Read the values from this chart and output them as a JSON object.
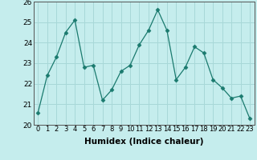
{
  "x": [
    0,
    1,
    2,
    3,
    4,
    5,
    6,
    7,
    8,
    9,
    10,
    11,
    12,
    13,
    14,
    15,
    16,
    17,
    18,
    19,
    20,
    21,
    22,
    23
  ],
  "y": [
    20.6,
    22.4,
    23.3,
    24.5,
    25.1,
    22.8,
    22.9,
    21.2,
    21.7,
    22.6,
    22.9,
    23.9,
    24.6,
    25.6,
    24.6,
    22.2,
    22.8,
    23.8,
    23.5,
    22.2,
    21.8,
    21.3,
    21.4,
    20.3
  ],
  "xlabel": "Humidex (Indice chaleur)",
  "line_color": "#1a7a6e",
  "marker": "D",
  "marker_size": 2.5,
  "bg_color": "#c5eded",
  "grid_color": "#a8d8d8",
  "ylim": [
    20,
    26
  ],
  "yticks": [
    20,
    21,
    22,
    23,
    24,
    25,
    26
  ],
  "xtick_fontsize": 6.0,
  "ytick_fontsize": 6.5,
  "xlabel_fontsize": 7.5
}
